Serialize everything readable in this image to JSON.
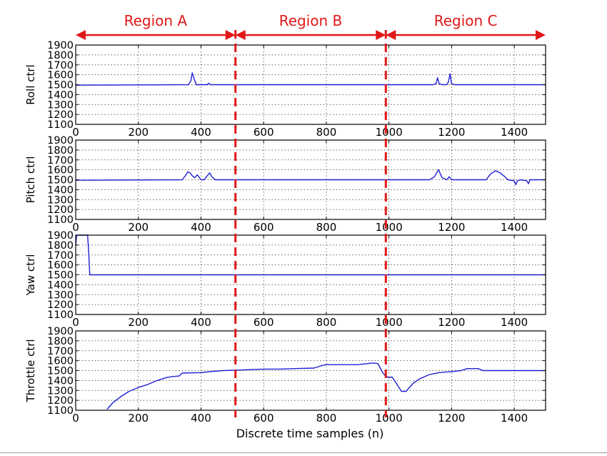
{
  "colors": {
    "series": "#1f1fd6",
    "annotation": "#e01818",
    "axis": "#000000",
    "grid": "#000000"
  },
  "chart_data": {
    "type": "line",
    "xlabel": "Discrete time samples (n)",
    "xlim": [
      0,
      1500
    ],
    "xticks": [
      0,
      200,
      400,
      600,
      800,
      1000,
      1200,
      1400
    ],
    "grid": true,
    "regions": [
      {
        "label": "Region A",
        "from": 0,
        "to": 510
      },
      {
        "label": "Region B",
        "from": 510,
        "to": 990
      },
      {
        "label": "Region C",
        "from": 990,
        "to": 1500
      }
    ],
    "boundaries": [
      510,
      990
    ],
    "panels": [
      {
        "ylabel": "Roll ctrl",
        "ylim": [
          1100,
          1900
        ],
        "yticks": [
          1100,
          1200,
          1300,
          1400,
          1500,
          1600,
          1700,
          1800,
          1900
        ],
        "x": [
          0,
          360,
          368,
          372,
          378,
          385,
          410,
          420,
          425,
          430,
          1140,
          1150,
          1155,
          1160,
          1170,
          1185,
          1190,
          1195,
          1200,
          1210,
          1500
        ],
        "y": [
          1495,
          1500,
          1540,
          1620,
          1560,
          1500,
          1500,
          1500,
          1515,
          1500,
          1500,
          1510,
          1570,
          1510,
          1500,
          1500,
          1530,
          1610,
          1510,
          1500,
          1500
        ]
      },
      {
        "ylabel": "Pitch ctrl",
        "ylim": [
          1100,
          1900
        ],
        "yticks": [
          1100,
          1200,
          1300,
          1400,
          1500,
          1600,
          1700,
          1800,
          1900
        ],
        "x": [
          0,
          340,
          350,
          358,
          365,
          372,
          380,
          388,
          400,
          410,
          420,
          428,
          435,
          445,
          1130,
          1145,
          1158,
          1170,
          1185,
          1192,
          1200,
          1215,
          1310,
          1325,
          1340,
          1355,
          1370,
          1380,
          1400,
          1405,
          1410,
          1420,
          1440,
          1445,
          1450,
          1470,
          1500
        ],
        "y": [
          1495,
          1500,
          1540,
          1580,
          1570,
          1540,
          1520,
          1550,
          1500,
          1500,
          1540,
          1570,
          1530,
          1500,
          1500,
          1530,
          1600,
          1520,
          1500,
          1530,
          1500,
          1500,
          1500,
          1560,
          1590,
          1570,
          1530,
          1500,
          1490,
          1450,
          1490,
          1500,
          1490,
          1460,
          1500,
          1500,
          1500
        ]
      },
      {
        "ylabel": "Yaw ctrl",
        "ylim": [
          1100,
          1900
        ],
        "yticks": [
          1100,
          1200,
          1300,
          1400,
          1500,
          1600,
          1700,
          1800,
          1900
        ],
        "x": [
          0,
          3,
          38,
          42,
          45,
          1500
        ],
        "y": [
          1800,
          1900,
          1900,
          1700,
          1500,
          1500
        ]
      },
      {
        "ylabel": "Throttle ctrl",
        "ylim": [
          1100,
          1900
        ],
        "yticks": [
          1100,
          1200,
          1300,
          1400,
          1500,
          1600,
          1700,
          1800,
          1900
        ],
        "x": [
          100,
          120,
          145,
          170,
          200,
          230,
          260,
          290,
          310,
          330,
          340,
          400,
          430,
          470,
          520,
          560,
          600,
          650,
          700,
          760,
          775,
          785,
          800,
          900,
          930,
          945,
          955,
          965,
          970,
          980,
          990,
          1000,
          1010,
          1020,
          1030,
          1040,
          1055,
          1065,
          1080,
          1100,
          1130,
          1160,
          1200,
          1230,
          1240,
          1250,
          1270,
          1285,
          1300,
          1400,
          1500
        ],
        "y": [
          1110,
          1180,
          1240,
          1290,
          1330,
          1360,
          1400,
          1430,
          1440,
          1445,
          1475,
          1480,
          1490,
          1500,
          1505,
          1510,
          1515,
          1515,
          1520,
          1525,
          1540,
          1550,
          1560,
          1560,
          1570,
          1575,
          1575,
          1570,
          1540,
          1480,
          1440,
          1430,
          1435,
          1390,
          1340,
          1290,
          1290,
          1330,
          1380,
          1420,
          1460,
          1480,
          1490,
          1500,
          1510,
          1520,
          1520,
          1520,
          1500,
          1500,
          1500
        ]
      }
    ]
  }
}
